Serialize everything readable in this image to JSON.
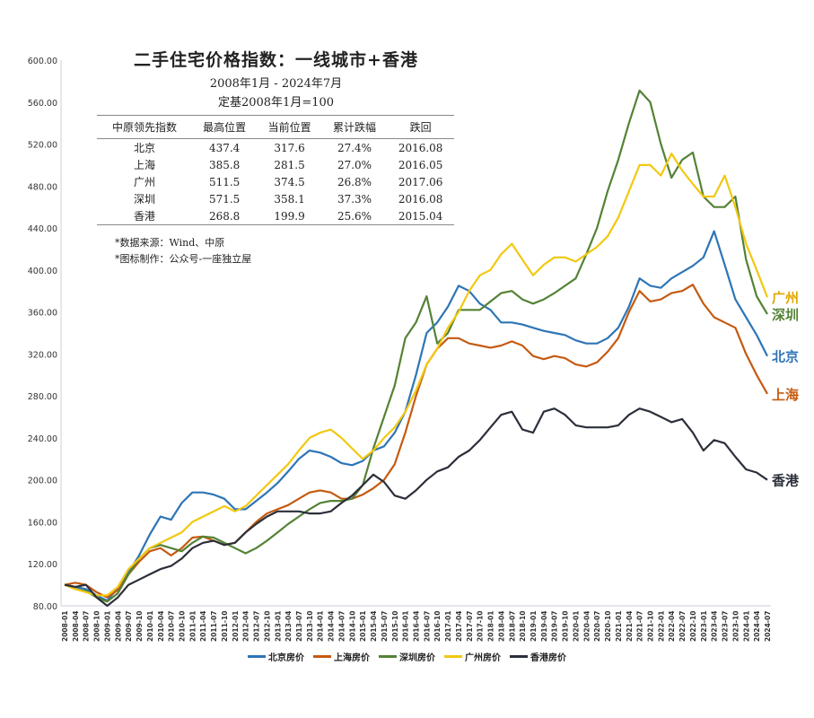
{
  "header": {
    "title": "二手住宅价格指数：一线城市+香港",
    "subtitle": "2008年1月 - 2024年7月",
    "base_note": "定基2008年1月=100"
  },
  "table": {
    "columns": [
      "中原领先指数",
      "最高位置",
      "当前位置",
      "累计跌幅",
      "跌回"
    ],
    "rows": [
      [
        "北京",
        "437.4",
        "317.6",
        "27.4%",
        "2016.08"
      ],
      [
        "上海",
        "385.8",
        "281.5",
        "27.0%",
        "2016.05"
      ],
      [
        "广州",
        "511.5",
        "374.5",
        "26.8%",
        "2017.06"
      ],
      [
        "深圳",
        "571.5",
        "358.1",
        "37.3%",
        "2016.08"
      ],
      [
        "香港",
        "268.8",
        "199.9",
        "25.6%",
        "2015.04"
      ]
    ]
  },
  "notes": [
    "*数据来源：Wind、中原",
    "*图标制作：公众号-一座独立屋"
  ],
  "chart_data": {
    "type": "line",
    "title": "二手住宅价格指数：一线城市+香港",
    "ylim": [
      80,
      600
    ],
    "yticks": [
      "80.00",
      "120.00",
      "160.00",
      "200.00",
      "240.00",
      "280.00",
      "320.00",
      "360.00",
      "400.00",
      "440.00",
      "480.00",
      "520.00",
      "560.00",
      "600.00"
    ],
    "grid": false,
    "legend_placement": "bottom",
    "x": [
      "2008-01",
      "2008-04",
      "2008-07",
      "2008-10",
      "2009-01",
      "2009-04",
      "2009-07",
      "2009-10",
      "2010-01",
      "2010-04",
      "2010-07",
      "2010-10",
      "2011-01",
      "2011-04",
      "2011-07",
      "2011-10",
      "2012-01",
      "2012-04",
      "2012-07",
      "2012-10",
      "2013-01",
      "2013-04",
      "2013-07",
      "2013-10",
      "2014-01",
      "2014-04",
      "2014-07",
      "2014-10",
      "2015-01",
      "2015-04",
      "2015-07",
      "2015-10",
      "2016-01",
      "2016-04",
      "2016-07",
      "2016-10",
      "2017-01",
      "2017-04",
      "2017-07",
      "2017-10",
      "2018-01",
      "2018-04",
      "2018-07",
      "2018-10",
      "2019-01",
      "2019-04",
      "2019-07",
      "2019-10",
      "2020-01",
      "2020-04",
      "2020-07",
      "2020-10",
      "2021-01",
      "2021-04",
      "2021-07",
      "2021-10",
      "2022-01",
      "2022-04",
      "2022-07",
      "2022-10",
      "2023-01",
      "2023-04",
      "2023-07",
      "2023-10",
      "2024-01",
      "2024-04",
      "2024-07"
    ],
    "series": [
      {
        "name": "北京房价",
        "end_label": "北京",
        "color": "#2e75b6",
        "values": [
          100,
          98,
          96,
          90,
          85,
          97,
          112,
          128,
          148,
          165,
          162,
          178,
          188,
          188,
          186,
          182,
          172,
          172,
          180,
          188,
          197,
          208,
          220,
          228,
          226,
          222,
          216,
          214,
          218,
          228,
          232,
          245,
          265,
          300,
          340,
          350,
          365,
          385,
          380,
          368,
          362,
          350,
          350,
          348,
          345,
          342,
          340,
          338,
          333,
          330,
          330,
          335,
          345,
          365,
          392,
          385,
          383,
          392,
          398,
          404,
          412,
          437,
          405,
          372,
          355,
          338,
          318
        ]
      },
      {
        "name": "上海房价",
        "end_label": "上海",
        "color": "#c55a11",
        "values": [
          100,
          102,
          100,
          93,
          88,
          95,
          110,
          122,
          132,
          135,
          128,
          135,
          145,
          146,
          142,
          138,
          140,
          150,
          160,
          168,
          172,
          176,
          182,
          188,
          190,
          188,
          182,
          182,
          186,
          192,
          200,
          215,
          245,
          280,
          310,
          325,
          335,
          335,
          330,
          328,
          326,
          328,
          332,
          328,
          318,
          315,
          318,
          316,
          310,
          308,
          312,
          322,
          335,
          360,
          380,
          370,
          372,
          378,
          380,
          386,
          368,
          355,
          350,
          345,
          320,
          300,
          282
        ]
      },
      {
        "name": "深圳房价",
        "end_label": "深圳",
        "color": "#548235",
        "values": [
          100,
          96,
          94,
          88,
          84,
          92,
          110,
          125,
          135,
          138,
          135,
          132,
          140,
          146,
          145,
          140,
          135,
          130,
          135,
          142,
          150,
          158,
          165,
          172,
          178,
          180,
          180,
          182,
          195,
          230,
          260,
          290,
          335,
          350,
          375,
          330,
          340,
          362,
          362,
          362,
          370,
          378,
          380,
          372,
          368,
          372,
          378,
          385,
          392,
          415,
          440,
          475,
          505,
          540,
          571,
          560,
          520,
          488,
          505,
          512,
          470,
          460,
          460,
          470,
          410,
          375,
          358
        ]
      },
      {
        "name": "广州房价",
        "end_label": "广州",
        "color": "#f2c811",
        "values": [
          100,
          96,
          93,
          90,
          90,
          98,
          115,
          125,
          135,
          140,
          145,
          150,
          160,
          165,
          170,
          175,
          170,
          175,
          185,
          195,
          205,
          215,
          228,
          240,
          245,
          248,
          240,
          230,
          220,
          228,
          240,
          250,
          265,
          285,
          310,
          325,
          345,
          360,
          380,
          395,
          400,
          415,
          425,
          410,
          395,
          405,
          412,
          412,
          408,
          415,
          422,
          432,
          450,
          475,
          500,
          500,
          490,
          511,
          495,
          482,
          470,
          470,
          490,
          460,
          425,
          400,
          374
        ]
      },
      {
        "name": "香港房价",
        "end_label": "香港",
        "color": "#2b2f3a",
        "values": [
          100,
          98,
          100,
          88,
          80,
          88,
          100,
          105,
          110,
          115,
          118,
          125,
          135,
          140,
          142,
          138,
          140,
          150,
          158,
          165,
          170,
          170,
          170,
          168,
          168,
          170,
          178,
          185,
          195,
          205,
          198,
          185,
          182,
          190,
          200,
          208,
          212,
          222,
          228,
          238,
          250,
          262,
          265,
          248,
          245,
          265,
          268,
          262,
          252,
          250,
          250,
          250,
          252,
          262,
          268,
          265,
          260,
          255,
          258,
          245,
          228,
          238,
          235,
          222,
          210,
          207,
          200
        ]
      }
    ]
  }
}
